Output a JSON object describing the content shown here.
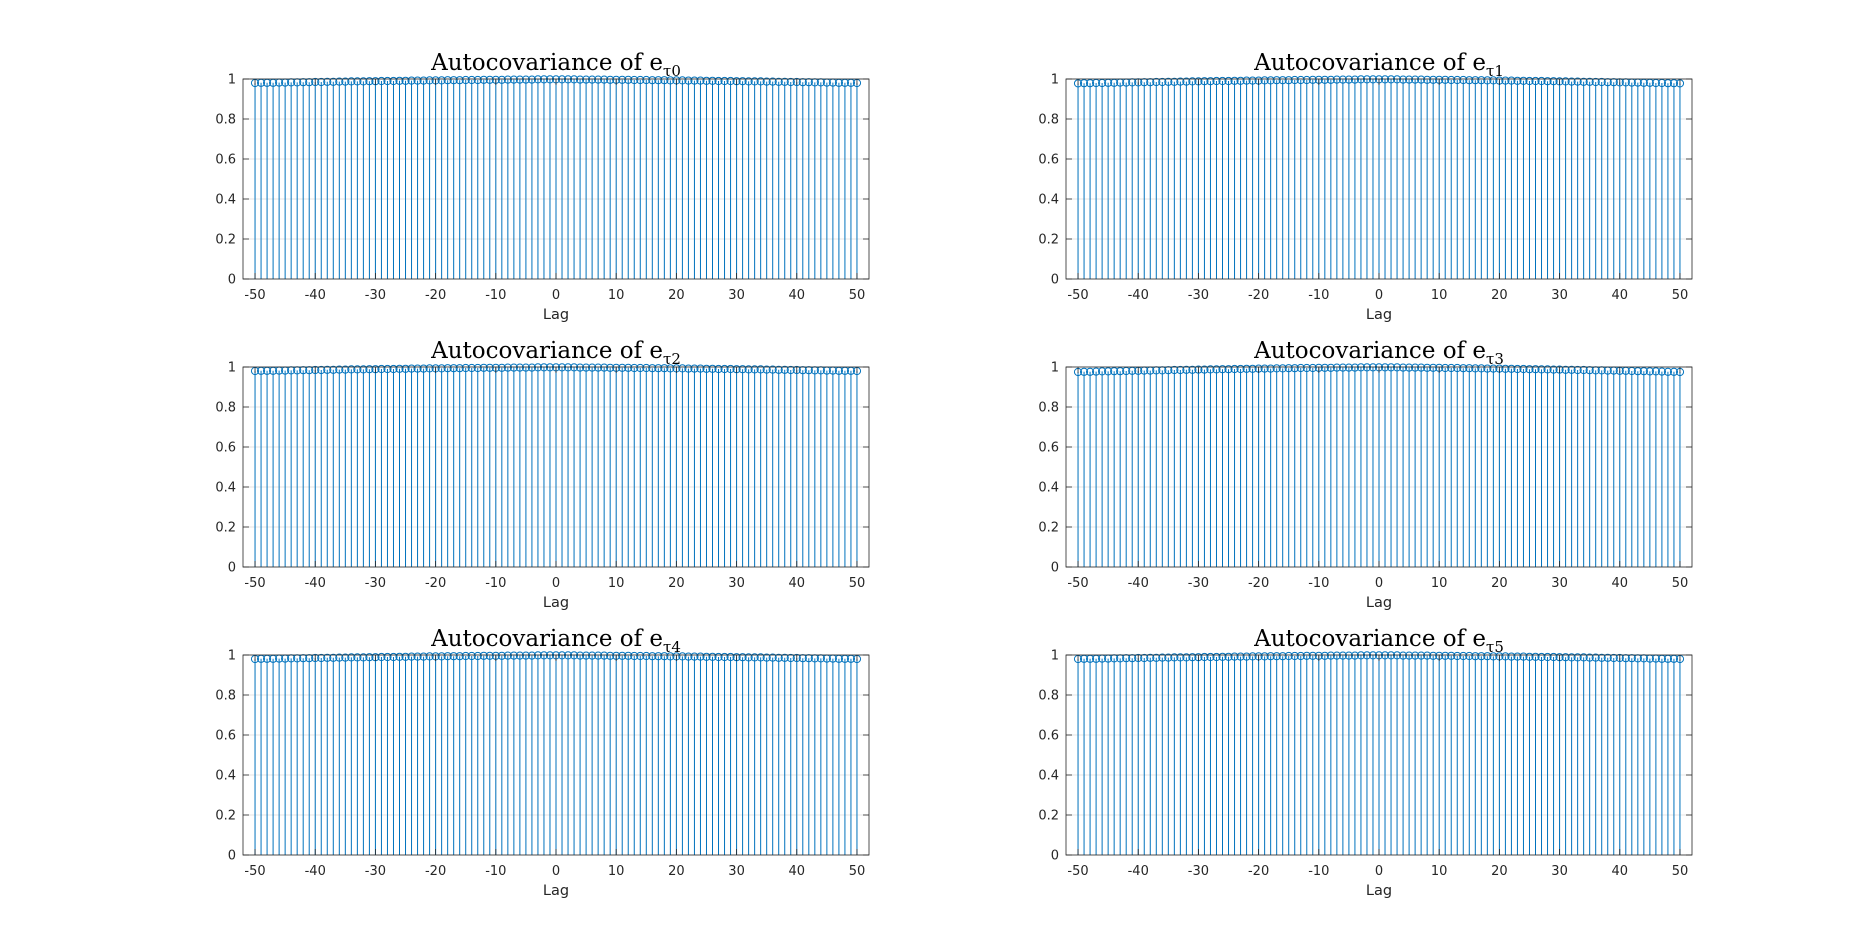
{
  "chart_data": [
    {
      "type": "stem",
      "title": "Autocovariance of e",
      "title_subscript": "τ0",
      "xlabel": "Lag",
      "ylabel": "",
      "xlim": [
        -52,
        52
      ],
      "ylim": [
        0,
        1
      ],
      "xticks": [
        -50,
        -40,
        -30,
        -20,
        -10,
        0,
        10,
        20,
        30,
        40,
        50
      ],
      "yticks": [
        0,
        0.2,
        0.4,
        0.6,
        0.8,
        1
      ],
      "grid": true,
      "lag_range": [
        -50,
        50
      ],
      "values_edge": 0.98,
      "values_peak": 0.998,
      "series_color": "#0072BD"
    },
    {
      "type": "stem",
      "title": "Autocovariance of e",
      "title_subscript": "τ1",
      "xlabel": "Lag",
      "ylabel": "",
      "xlim": [
        -52,
        52
      ],
      "ylim": [
        0,
        1
      ],
      "xticks": [
        -50,
        -40,
        -30,
        -20,
        -10,
        0,
        10,
        20,
        30,
        40,
        50
      ],
      "yticks": [
        0,
        0.2,
        0.4,
        0.6,
        0.8,
        1
      ],
      "grid": true,
      "lag_range": [
        -50,
        50
      ],
      "values_edge": 0.978,
      "values_peak": 0.998,
      "series_color": "#0072BD"
    },
    {
      "type": "stem",
      "title": "Autocovariance of e",
      "title_subscript": "τ2",
      "xlabel": "Lag",
      "ylabel": "",
      "xlim": [
        -52,
        52
      ],
      "ylim": [
        0,
        1
      ],
      "xticks": [
        -50,
        -40,
        -30,
        -20,
        -10,
        0,
        10,
        20,
        30,
        40,
        50
      ],
      "yticks": [
        0,
        0.2,
        0.4,
        0.6,
        0.8,
        1
      ],
      "grid": true,
      "lag_range": [
        -50,
        50
      ],
      "values_edge": 0.98,
      "values_peak": 0.998,
      "series_color": "#0072BD"
    },
    {
      "type": "stem",
      "title": "Autocovariance of e",
      "title_subscript": "τ3",
      "xlabel": "Lag",
      "ylabel": "",
      "xlim": [
        -52,
        52
      ],
      "ylim": [
        0,
        1
      ],
      "xticks": [
        -50,
        -40,
        -30,
        -20,
        -10,
        0,
        10,
        20,
        30,
        40,
        50
      ],
      "yticks": [
        0,
        0.2,
        0.4,
        0.6,
        0.8,
        1
      ],
      "grid": true,
      "lag_range": [
        -50,
        50
      ],
      "values_edge": 0.975,
      "values_peak": 0.998,
      "series_color": "#0072BD"
    },
    {
      "type": "stem",
      "title": "Autocovariance of e",
      "title_subscript": "τ4",
      "xlabel": "Lag",
      "ylabel": "",
      "xlim": [
        -52,
        52
      ],
      "ylim": [
        0,
        1
      ],
      "xticks": [
        -50,
        -40,
        -30,
        -20,
        -10,
        0,
        10,
        20,
        30,
        40,
        50
      ],
      "yticks": [
        0,
        0.2,
        0.4,
        0.6,
        0.8,
        1
      ],
      "grid": true,
      "lag_range": [
        -50,
        50
      ],
      "values_edge": 0.98,
      "values_peak": 0.998,
      "series_color": "#0072BD"
    },
    {
      "type": "stem",
      "title": "Autocovariance of e",
      "title_subscript": "τ5",
      "xlabel": "Lag",
      "ylabel": "",
      "xlim": [
        -52,
        52
      ],
      "ylim": [
        0,
        1
      ],
      "xticks": [
        -50,
        -40,
        -30,
        -20,
        -10,
        0,
        10,
        20,
        30,
        40,
        50
      ],
      "yticks": [
        0,
        0.2,
        0.4,
        0.6,
        0.8,
        1
      ],
      "grid": true,
      "lag_range": [
        -50,
        50
      ],
      "values_edge": 0.98,
      "values_peak": 0.998,
      "series_color": "#0072BD"
    }
  ]
}
